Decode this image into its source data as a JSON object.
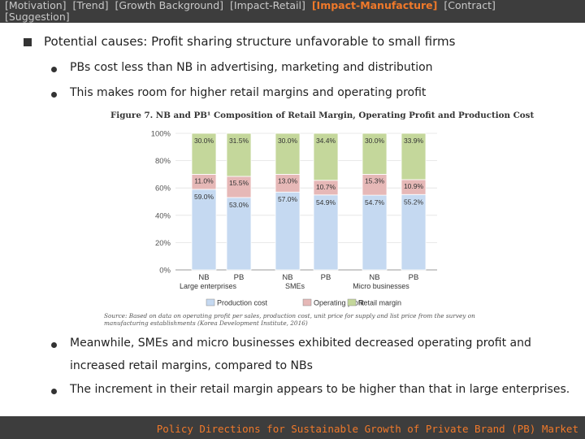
{
  "nav": {
    "items": [
      "[Motivation]",
      "[Trend]",
      "[Growth Background]",
      "[Impact-Retail]",
      "[Impact-Manufacture]",
      "[Contract]",
      "[Suggestion]"
    ],
    "active_index": 4
  },
  "main_point": "Potential causes: Profit sharing structure unfavorable to small firms",
  "bullets_top": [
    "PBs cost less than NB in advertising, marketing and distribution",
    "This makes room for higher retail margins and operating profit"
  ],
  "bullets_bottom": [
    "Meanwhile, SMEs and micro businesses exhibited decreased operating profit and",
    "increased retail margins, compared to NBs",
    "The increment in their retail margin appears to be higher than that in large enterprises."
  ],
  "footer": "Policy Directions for Sustainable Growth of Private Brand (PB) Market",
  "chart_data": {
    "type": "bar",
    "stacked": true,
    "title": "Figure 7.  NB and PB¹ Composition of Retail Margin, Operating Profit and Production Cost",
    "categories": [
      "NB",
      "PB",
      "NB",
      "PB",
      "NB",
      "PB"
    ],
    "groups": [
      {
        "name": "Large enterprises",
        "categories": [
          0,
          1
        ]
      },
      {
        "name": "SMEs",
        "categories": [
          2,
          3
        ]
      },
      {
        "name": "Micro businesses",
        "categories": [
          4,
          5
        ]
      }
    ],
    "series": [
      {
        "name": "Production cost",
        "color": "#c5d9f1",
        "values": [
          59.0,
          53.0,
          57.0,
          54.9,
          54.7,
          55.2
        ],
        "labels": [
          "59.0%",
          "53.0%",
          "57.0%",
          "54.9%",
          "54.7%",
          "55.2%"
        ]
      },
      {
        "name": "Operating profit",
        "color": "#e6b8b7",
        "values": [
          11.0,
          15.5,
          13.0,
          10.7,
          15.3,
          10.9
        ],
        "labels": [
          "11.0%",
          "15.5%",
          "13.0%",
          "10.7%",
          "15.3%",
          "10.9%"
        ]
      },
      {
        "name": "Retail margin",
        "color": "#c4d79b",
        "values": [
          30.0,
          31.5,
          30.0,
          34.4,
          30.0,
          33.9
        ],
        "labels": [
          "30.0%",
          "31.5%",
          "30.0%",
          "34.4%",
          "30.0%",
          "33.9%"
        ]
      }
    ],
    "yticks": [
      "0%",
      "20%",
      "40%",
      "60%",
      "80%",
      "100%"
    ],
    "ylim": [
      0,
      100
    ],
    "legend_position": "bottom",
    "source": "Source: Based on data on operating profit per sales, production cost, unit price for supply and list price from the survey on manufacturing establishments (Korea Development Institute, 2016)"
  }
}
